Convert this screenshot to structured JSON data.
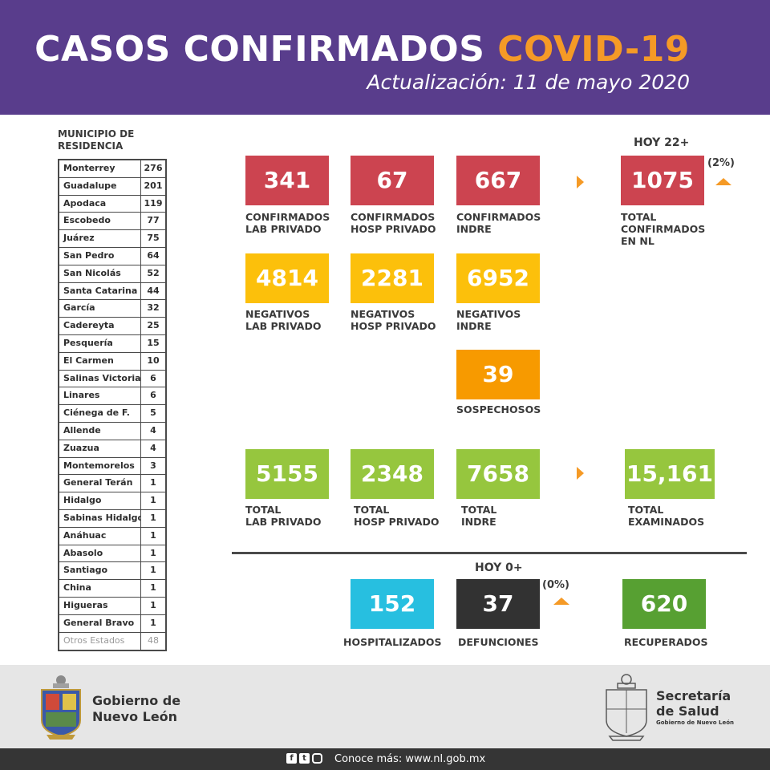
{
  "header": {
    "title_main": "CASOS CONFIRMADOS ",
    "title_accent": "COVID-19",
    "update": "Actualización: 11 de mayo 2020",
    "bg_color": "#593d8c",
    "accent_color": "#f59a26"
  },
  "municipios": {
    "heading_line1": "MUNICIPIO DE",
    "heading_line2": "RESIDENCIA",
    "rows": [
      {
        "name": "Monterrey",
        "count": "276"
      },
      {
        "name": "Guadalupe",
        "count": "201"
      },
      {
        "name": "Apodaca",
        "count": "119"
      },
      {
        "name": "Escobedo",
        "count": "77"
      },
      {
        "name": "Juárez",
        "count": "75"
      },
      {
        "name": "San Pedro",
        "count": "64"
      },
      {
        "name": "San Nicolás",
        "count": "52"
      },
      {
        "name": "Santa Catarina",
        "count": "44"
      },
      {
        "name": "García",
        "count": "32"
      },
      {
        "name": "Cadereyta",
        "count": "25"
      },
      {
        "name": "Pesquería",
        "count": "15"
      },
      {
        "name": "El Carmen",
        "count": "10"
      },
      {
        "name": "Salinas Victoria",
        "count": "6"
      },
      {
        "name": "Linares",
        "count": "6"
      },
      {
        "name": "Ciénega de F.",
        "count": "5"
      },
      {
        "name": "Allende",
        "count": "4"
      },
      {
        "name": "Zuazua",
        "count": "4"
      },
      {
        "name": "Montemorelos",
        "count": "3"
      },
      {
        "name": "General Terán",
        "count": "1"
      },
      {
        "name": "Hidalgo",
        "count": "1"
      },
      {
        "name": "Sabinas Hidalgo",
        "count": "1"
      },
      {
        "name": "Anáhuac",
        "count": "1"
      },
      {
        "name": "Abasolo",
        "count": "1"
      },
      {
        "name": "Santiago",
        "count": "1"
      },
      {
        "name": "China",
        "count": "1"
      },
      {
        "name": "Higueras",
        "count": "1"
      },
      {
        "name": "General Bravo",
        "count": "1"
      }
    ],
    "otros_name": "Otros Estados",
    "otros_count": "48"
  },
  "confirmados": {
    "lab_privado": {
      "value": "341",
      "label1": "CONFIRMADOS",
      "label2": "LAB PRIVADO"
    },
    "hosp_privado": {
      "value": "67",
      "label1": "CONFIRMADOS",
      "label2": "HOSP PRIVADO"
    },
    "indre": {
      "value": "667",
      "label1": "CONFIRMADOS",
      "label2": "INDRE"
    },
    "hoy": "HOY 22+",
    "total": {
      "value": "1075",
      "label1": "TOTAL",
      "label2": "CONFIRMADOS",
      "label3": "EN NL"
    },
    "pct": "(2%)"
  },
  "negativos": {
    "lab_privado": {
      "value": "4814",
      "label1": "NEGATIVOS",
      "label2": "LAB PRIVADO"
    },
    "hosp_privado": {
      "value": "2281",
      "label1": "NEGATIVOS",
      "label2": "HOSP PRIVADO"
    },
    "indre": {
      "value": "6952",
      "label1": "NEGATIVOS",
      "label2": "INDRE"
    }
  },
  "sospechosos": {
    "value": "39",
    "label": "SOSPECHOSOS"
  },
  "totales": {
    "lab_privado": {
      "value": "5155",
      "label1": "TOTAL",
      "label2": "LAB PRIVADO"
    },
    "hosp_privado": {
      "value": "2348",
      "label1": "TOTAL",
      "label2": "HOSP PRIVADO"
    },
    "indre": {
      "value": "7658",
      "label1": "TOTAL",
      "label2": "INDRE"
    },
    "examinados": {
      "value": "15,161",
      "label1": "TOTAL",
      "label2": "EXAMINADOS"
    }
  },
  "estado": {
    "hoy": "HOY 0+",
    "pct": "(0%)",
    "hospitalizados": {
      "value": "152",
      "label": "HOSPITALIZADOS"
    },
    "defunciones": {
      "value": "37",
      "label": "DEFUNCIONES"
    },
    "recuperados": {
      "value": "620",
      "label": "RECUPERADOS"
    }
  },
  "footer": {
    "gov_line1": "Gobierno de",
    "gov_line2": "Nuevo León",
    "salud_line1": "Secretaría",
    "salud_line2": "de Salud",
    "salud_sub": "Gobierno de Nuevo León",
    "more": "Conoce más: www.nl.gob.mx",
    "icons": [
      "facebook-icon",
      "twitter-icon",
      "instagram-icon"
    ]
  }
}
